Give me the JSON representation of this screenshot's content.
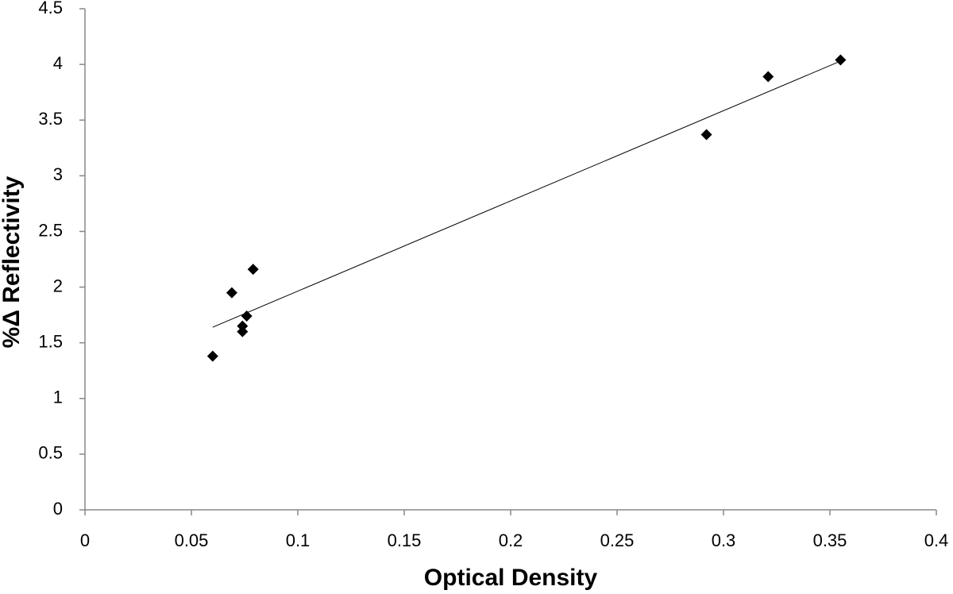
{
  "chart_data": {
    "type": "scatter",
    "x_label": "Optical Density",
    "y_label": "%Δ Reflectivity",
    "series": [
      {
        "color": "#000000",
        "x": [
          0.06,
          0.069,
          0.074,
          0.074,
          0.076,
          0.079,
          0.292,
          0.321,
          0.355
        ],
        "values": [
          1.38,
          1.95,
          1.65,
          1.6,
          1.74,
          2.16,
          3.37,
          3.89,
          4.04
        ]
      }
    ],
    "trendline": {
      "x": [
        0.06,
        0.355
      ],
      "values": [
        1.64,
        4.03
      ]
    },
    "xlim": [
      0,
      0.4
    ],
    "xticks": [
      0,
      0.05,
      0.1,
      0.15,
      0.2,
      0.25,
      0.3,
      0.35,
      0.4
    ],
    "ylim": [
      0,
      4.5
    ],
    "yticks": [
      0,
      0.5,
      1,
      1.5,
      2,
      2.5,
      3,
      3.5,
      4,
      4.5
    ]
  }
}
